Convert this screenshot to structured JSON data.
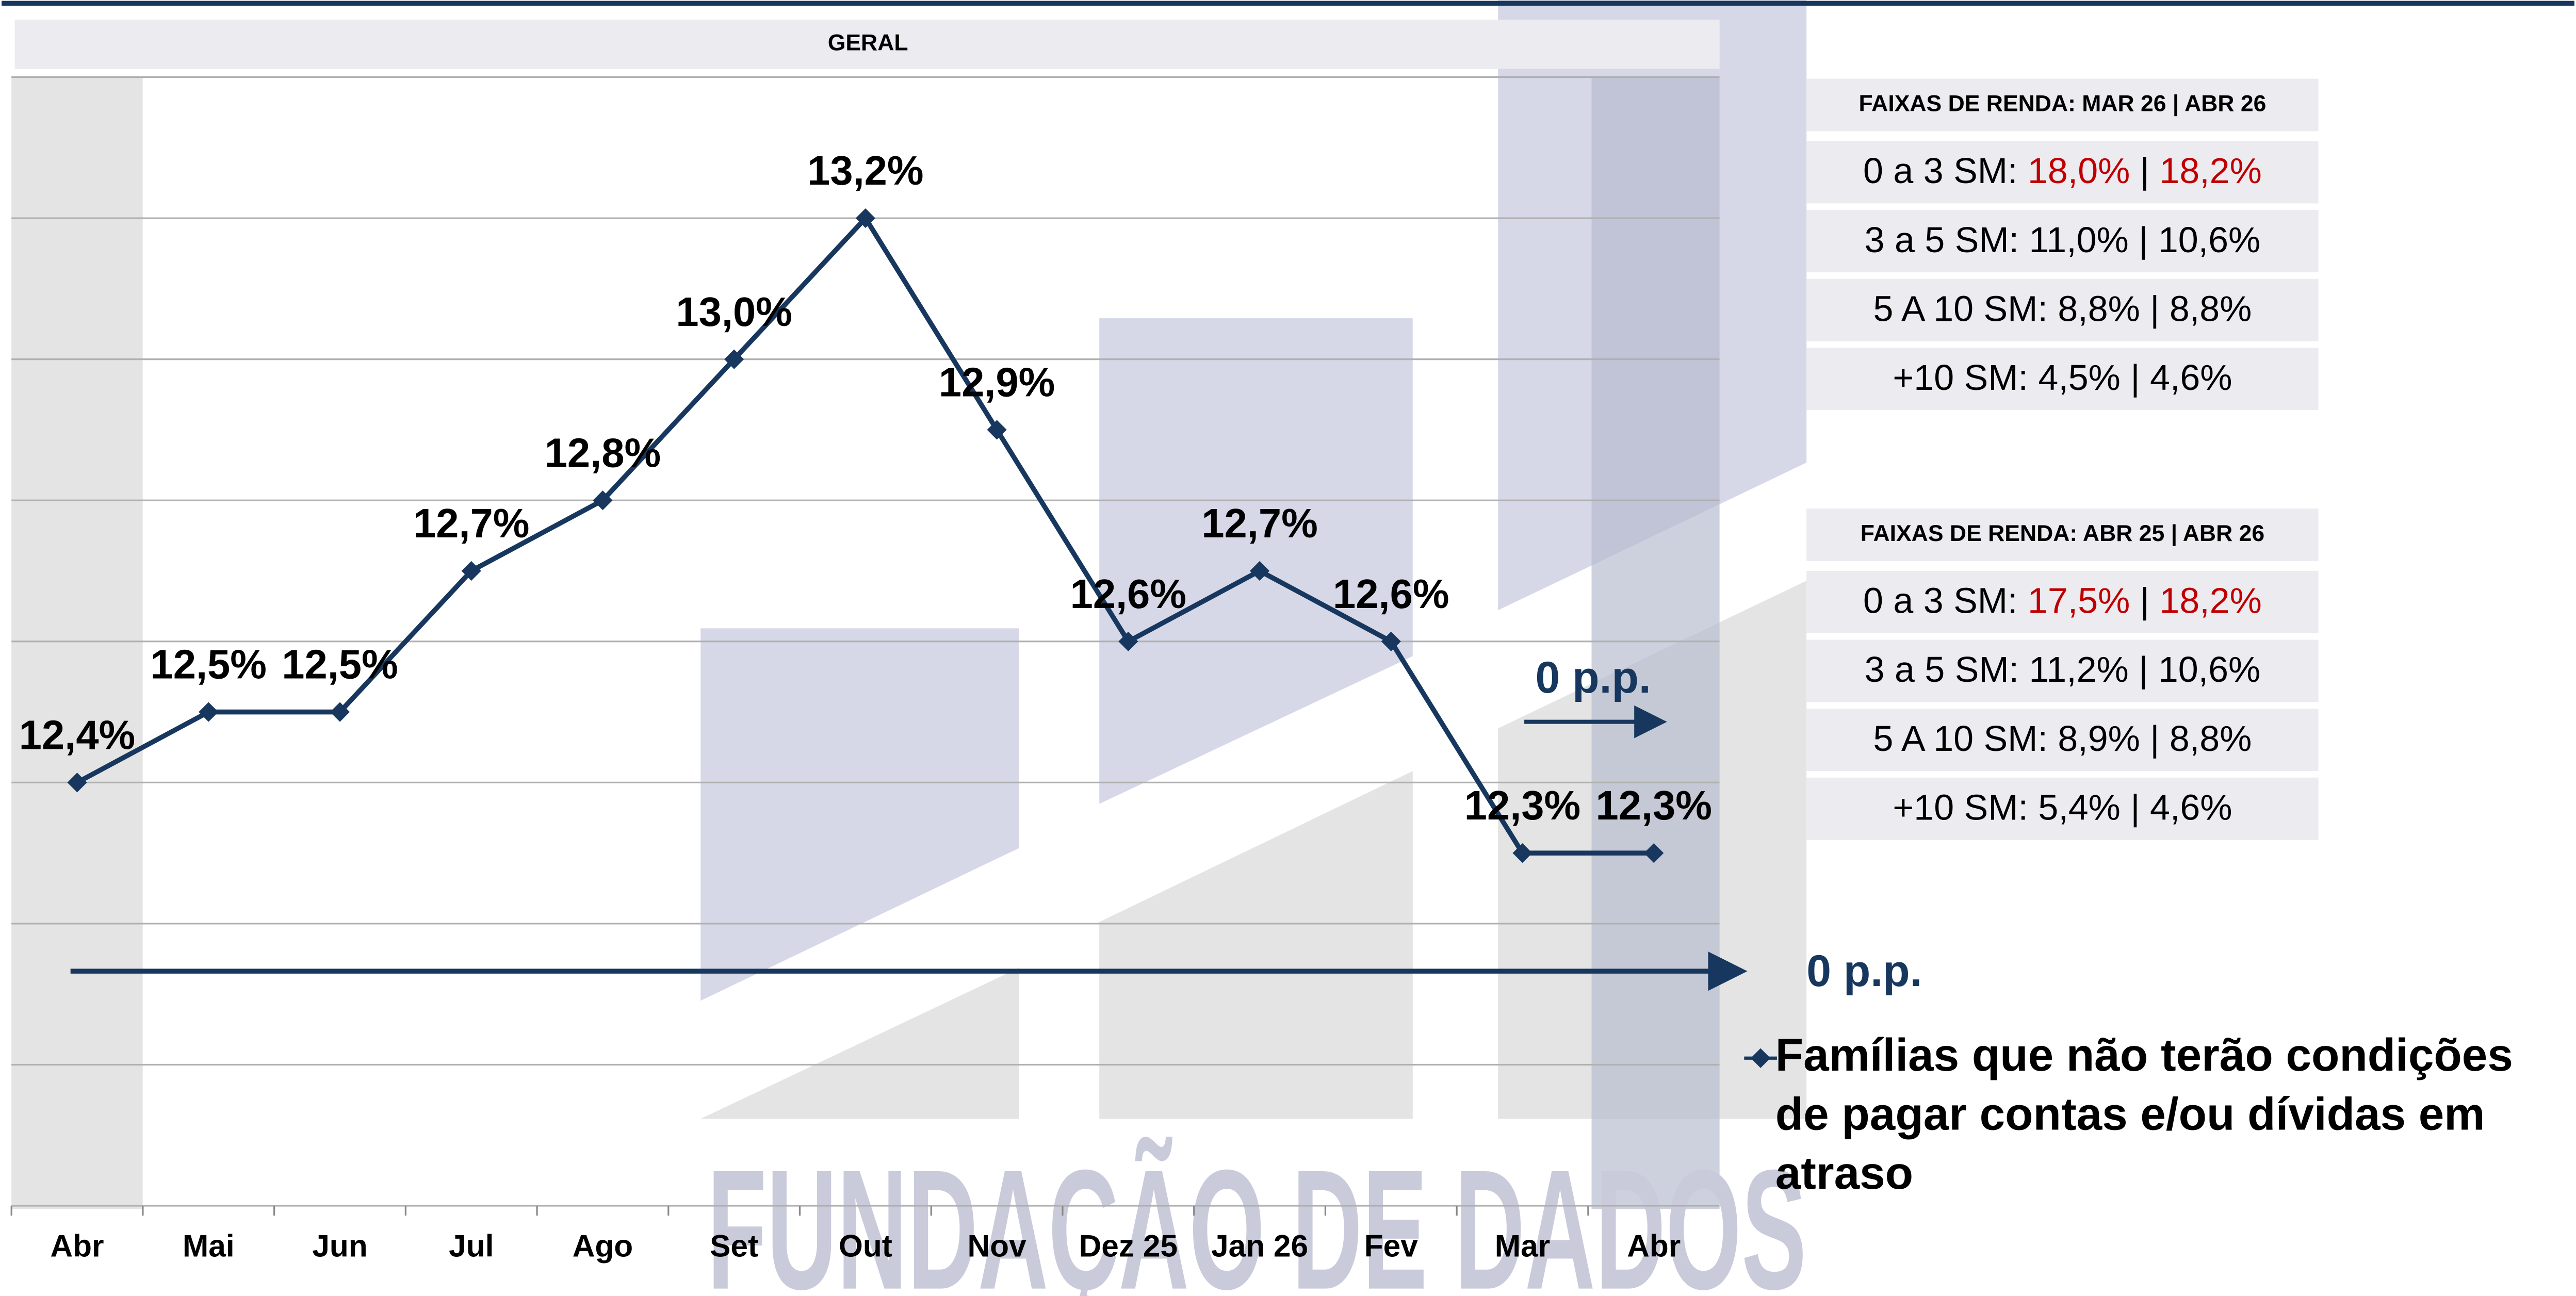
{
  "chart_data": {
    "type": "line",
    "title": "GERAL",
    "categories": [
      "Abr",
      "Mai",
      "Jun",
      "Jul",
      "Ago",
      "Set",
      "Out",
      "Nov",
      "Dez 25",
      "Jan 26",
      "Fev",
      "Mar",
      "Abr"
    ],
    "series": [
      {
        "name": "Famílias que não terão condições de pagar contas e/ou dívidas em atraso",
        "color": "#17375e",
        "values": [
          12.4,
          12.5,
          12.5,
          12.7,
          12.8,
          13.0,
          13.2,
          12.9,
          12.6,
          12.7,
          12.6,
          12.3,
          12.3
        ],
        "value_labels": [
          "12,4%",
          "12,5%",
          "12,5%",
          "12,7%",
          "12,8%",
          "13,0%",
          "13,2%",
          "12,9%",
          "12,6%",
          "12,7%",
          "12,6%",
          "12,3%",
          "12,3%"
        ]
      }
    ],
    "ylim": [
      11.8,
      13.4
    ],
    "yticks": [
      11.8,
      12.0,
      12.2,
      12.4,
      12.6,
      12.8,
      13.0,
      13.2,
      13.4
    ],
    "grid": true,
    "annotations": [
      "0 p.p.",
      "0 p.p."
    ]
  },
  "tables": [
    {
      "title": "FAIXAS DE RENDA: MAR 26 | ABR 26",
      "rows": [
        {
          "label": "0 a 3 SM:",
          "a": "18,0%",
          "b": "18,2%",
          "highlight": true
        },
        {
          "label": "3 a 5 SM:",
          "a": "11,0%",
          "b": "10,6%",
          "highlight": false
        },
        {
          "label": "5 A 10 SM:",
          "a": "8,8%",
          "b": "8,8%",
          "highlight": false
        },
        {
          "label": "+10 SM:",
          "a": "4,5%",
          "b": "4,6%",
          "highlight": false
        }
      ]
    },
    {
      "title": "FAIXAS DE RENDA: ABR 25 | ABR 26",
      "rows": [
        {
          "label": "0 a 3 SM:",
          "a": "17,5%",
          "b": "18,2%",
          "highlight": true
        },
        {
          "label": "3 a 5 SM:",
          "a": "11,2%",
          "b": "10,6%",
          "highlight": false
        },
        {
          "label": "5 A 10 SM:",
          "a": "8,9%",
          "b": "8,8%",
          "highlight": false
        },
        {
          "label": "+10 SM:",
          "a": "5,4%",
          "b": "4,6%",
          "highlight": false
        }
      ]
    }
  ],
  "watermark": "FUNDAÇÃO DE DADOS"
}
